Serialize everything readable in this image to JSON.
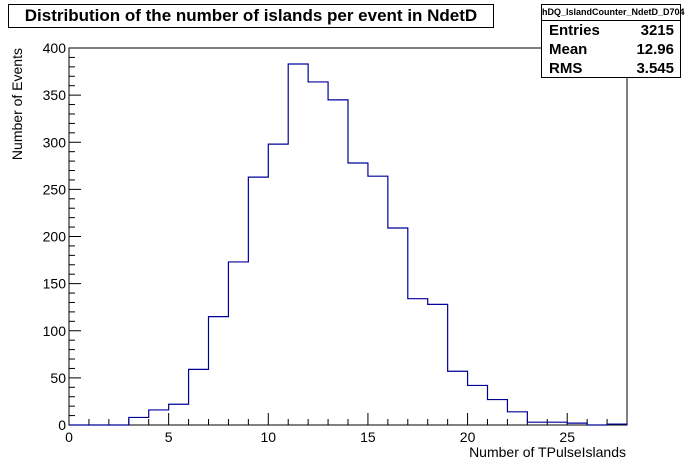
{
  "chart_data": {
    "type": "bar",
    "title": "Distribution of the number of islands per event in NdetD",
    "xlabel": "Number of TPulseIslands",
    "ylabel": "Number of Events",
    "xlim": [
      0,
      28
    ],
    "ylim": [
      0,
      400
    ],
    "x_ticks": [
      "0",
      "5",
      "10",
      "15",
      "20",
      "25"
    ],
    "y_ticks": [
      "0",
      "50",
      "100",
      "150",
      "200",
      "250",
      "300",
      "350",
      "400"
    ],
    "bin_edges": [
      0,
      1,
      2,
      3,
      4,
      5,
      6,
      7,
      8,
      9,
      10,
      11,
      12,
      13,
      14,
      15,
      16,
      17,
      18,
      19,
      20,
      21,
      22,
      23,
      24,
      25,
      26,
      27,
      28
    ],
    "values": [
      0,
      0,
      0,
      8,
      16,
      22,
      59,
      115,
      173,
      263,
      298,
      383,
      364,
      345,
      278,
      264,
      209,
      134,
      128,
      57,
      42,
      27,
      14,
      3,
      3,
      2,
      0,
      1
    ],
    "color": "#000099",
    "grid": false,
    "stats": {
      "name": "hDQ_IslandCounter_NdetD_D704",
      "entries_label": "Entries",
      "entries": "3215",
      "mean_label": "Mean",
      "mean": "12.96",
      "rms_label": "RMS",
      "rms": "3.545"
    }
  }
}
